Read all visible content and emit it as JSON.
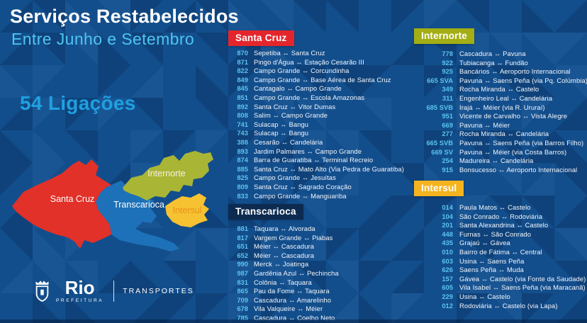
{
  "header": {
    "title": "Serviços Restabelecidos",
    "subtitle": "Entre Junho e Setembro",
    "stat": "54 Ligações"
  },
  "colors": {
    "background": "#134e8c",
    "pattern_dark": "rgba(8,40,82,0.30)",
    "pattern_light": "rgba(130,185,235,0.07)",
    "title": "#ffffff",
    "subtitle": "#4ec5f1",
    "stat": "#1fa0e0",
    "line_number": "#5ac4ee",
    "line_text": "#f2f6fb"
  },
  "map": {
    "regions": [
      {
        "name": "Santa Cruz",
        "color": "#e23128",
        "label_color": "#ffffff"
      },
      {
        "name": "Transcarioca",
        "color": "#1d71b8",
        "label_color": "#ffffff"
      },
      {
        "name": "Internorte",
        "color": "#a9b535",
        "label_color": "#f5f2e2"
      },
      {
        "name": "Intersul",
        "color": "#f6c231",
        "label_color": "#e8911d"
      }
    ]
  },
  "sections": [
    {
      "title": "Santa Cruz",
      "color": "#e4262c",
      "lines": [
        {
          "number": "870",
          "route": "Sepetiba ↔ Santa Cruz"
        },
        {
          "number": "871",
          "route": "Pingo d'Água ↔ Estação Cesarão III"
        },
        {
          "number": "822",
          "route": "Campo Grande ↔ Corcundinha"
        },
        {
          "number": "849",
          "route": "Campo Grande ↔ Base Aérea de Santa Cruz"
        },
        {
          "number": "845",
          "route": "Cantagalo ↔ Campo Grande"
        },
        {
          "number": "851",
          "route": "Campo Grande ↔ Escola Amazonas"
        },
        {
          "number": "892",
          "route": "Santa Cruz ↔ Vitor Dumas"
        },
        {
          "number": "808",
          "route": "Salim ↔ Campo Grande"
        },
        {
          "number": "741",
          "route": "Sulacap ↔ Bangu"
        },
        {
          "number": "743",
          "route": "Sulacap ↔ Bangu"
        },
        {
          "number": "388",
          "route": "Cesarão ↔ Candelária"
        },
        {
          "number": "893",
          "route": "Jardim Palmares ↔ Campo Grande"
        },
        {
          "number": "874",
          "route": "Barra de Guaratiba ↔ Terminal Recreio"
        },
        {
          "number": "885",
          "route": "Santa Cruz ↔ Mato Alto (Via Pedra de Guaratiba)"
        },
        {
          "number": "825",
          "route": "Campo Grande ↔ Jesuítas"
        },
        {
          "number": "809",
          "route": "Santa Cruz ↔ Sagrado Coração"
        },
        {
          "number": "833",
          "route": "Campo Grande ↔ Manguariba"
        }
      ]
    },
    {
      "title": "Transcarioca",
      "color": "#0d2b50",
      "lines": [
        {
          "number": "881",
          "route": "Taquara ↔ Alvorada"
        },
        {
          "number": "817",
          "route": "Vargem Grande ↔ Piabas"
        },
        {
          "number": "651",
          "route": "Méier ↔ Cascadura"
        },
        {
          "number": "652",
          "route": "Méier ↔ Cascadura"
        },
        {
          "number": "990",
          "route": "Merck ↔ Joatinga"
        },
        {
          "number": "987",
          "route": "Gardênia Azul ↔ Pechincha"
        },
        {
          "number": "831",
          "route": "Colônia ↔ Taquara"
        },
        {
          "number": "865",
          "route": "Pau da Fome ↔ Taquara"
        },
        {
          "number": "709",
          "route": "Cascadura ↔ Amarelinho"
        },
        {
          "number": "678",
          "route": "Vila Valqueire ↔ Méier"
        },
        {
          "number": "785",
          "route": "Cascadura ↔ Coelho Neto"
        }
      ]
    },
    {
      "title": "Internorte",
      "color": "#a3ae14",
      "lines": [
        {
          "number": "778",
          "route": "Cascadura ↔ Pavuna"
        },
        {
          "number": "922",
          "route": "Tubiacanga ↔ Fundão"
        },
        {
          "number": "925",
          "route": "Bancários ↔ Aeroporto Internacional"
        },
        {
          "number": "665 SVA",
          "route": "Pavuna ↔ Saens Peña (via Pq. Colúmbia)"
        },
        {
          "number": "349",
          "route": "Rocha Miranda ↔ Castelo"
        },
        {
          "number": "311",
          "route": "Engenheiro Leal ↔ Candelária"
        },
        {
          "number": "685 SVB",
          "route": "Irajá ↔ Méier (via R. Ururaí)"
        },
        {
          "number": "951",
          "route": "Vicente de Carvalho ↔ Vista Alegre"
        },
        {
          "number": "669",
          "route": "Pavuna ↔ Méier"
        },
        {
          "number": "277",
          "route": "Rocha Miranda ↔ Candelária"
        },
        {
          "number": "665 SVB",
          "route": "Pavuna ↔ Saens Peña (via Barros Filho)"
        },
        {
          "number": "669 SV",
          "route": "Pavuna ↔ Méier (via Costa Barros)"
        },
        {
          "number": "254",
          "route": "Madureira ↔ Candelária"
        },
        {
          "number": "915",
          "route": "Bonsucesso ↔ Aeroporto Internacional"
        }
      ]
    },
    {
      "title": "Intersul",
      "color": "#f4b41f",
      "lines": [
        {
          "number": "014",
          "route": "Paula Matos ↔ Castelo"
        },
        {
          "number": "104",
          "route": "São Conrado ↔ Rodoviária"
        },
        {
          "number": "201",
          "route": "Santa Alexandrina ↔ Castelo"
        },
        {
          "number": "448",
          "route": "Furnas ↔ São Conrado"
        },
        {
          "number": "435",
          "route": "Grajaú ↔ Gávea"
        },
        {
          "number": "010",
          "route": "Bairro de Fátima ↔ Central"
        },
        {
          "number": "603",
          "route": "Usina ↔ Saens Peña"
        },
        {
          "number": "626",
          "route": "Saens Peña ↔ Muda"
        },
        {
          "number": "157",
          "route": "Gávea ↔ Castelo (via Fonte da Saudade)"
        },
        {
          "number": "605",
          "route": "Vila Isabel ↔ Saens Peña (via Maracanã)"
        },
        {
          "number": "229",
          "route": "Usina ↔ Castelo"
        },
        {
          "number": "012",
          "route": "Rodoviária ↔ Castelo (via Lapa)"
        }
      ]
    }
  ],
  "footer": {
    "brand": "Rio",
    "brand_sub": "PREFEITURA",
    "department": "TRANSPORTES"
  }
}
